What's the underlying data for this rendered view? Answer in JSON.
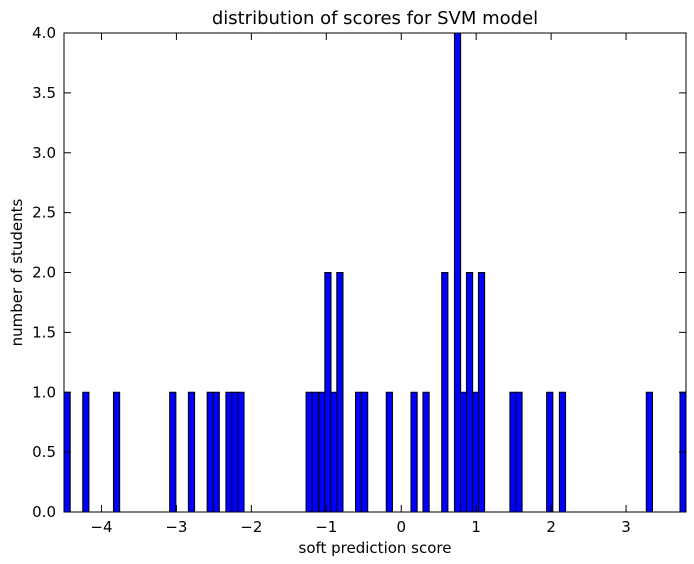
{
  "chart_data": {
    "type": "bar",
    "title": "distribution of scores for SVM model",
    "xlabel": "soft prediction score",
    "ylabel": "number of students",
    "xlim": [
      -4.5,
      3.8
    ],
    "ylim": [
      0,
      4.0
    ],
    "bar_width": 0.083,
    "bar_color": "#0000ff",
    "grid": false,
    "x_ticks": [
      {
        "value": -4,
        "label": "−4"
      },
      {
        "value": -3,
        "label": "−3"
      },
      {
        "value": -2,
        "label": "−2"
      },
      {
        "value": -1,
        "label": "−1"
      },
      {
        "value": 0,
        "label": "0"
      },
      {
        "value": 1,
        "label": "1"
      },
      {
        "value": 2,
        "label": "2"
      },
      {
        "value": 3,
        "label": "3"
      }
    ],
    "y_ticks": [
      {
        "value": 0.0,
        "label": "0.0"
      },
      {
        "value": 0.5,
        "label": "0.5"
      },
      {
        "value": 1.0,
        "label": "1.0"
      },
      {
        "value": 1.5,
        "label": "1.5"
      },
      {
        "value": 2.0,
        "label": "2.0"
      },
      {
        "value": 2.5,
        "label": "2.5"
      },
      {
        "value": 3.0,
        "label": "3.0"
      },
      {
        "value": 3.5,
        "label": "3.5"
      },
      {
        "value": 4.0,
        "label": "4.0"
      }
    ],
    "bins": [
      {
        "x": -4.5,
        "count": 1
      },
      {
        "x": -4.25,
        "count": 1
      },
      {
        "x": -3.84,
        "count": 1
      },
      {
        "x": -3.09,
        "count": 1
      },
      {
        "x": -2.84,
        "count": 1
      },
      {
        "x": -2.59,
        "count": 1
      },
      {
        "x": -2.51,
        "count": 1
      },
      {
        "x": -2.34,
        "count": 1
      },
      {
        "x": -2.26,
        "count": 1
      },
      {
        "x": -2.18,
        "count": 1
      },
      {
        "x": -1.27,
        "count": 1
      },
      {
        "x": -1.19,
        "count": 1
      },
      {
        "x": -1.1,
        "count": 1
      },
      {
        "x": -1.02,
        "count": 2
      },
      {
        "x": -0.94,
        "count": 1
      },
      {
        "x": -0.86,
        "count": 2
      },
      {
        "x": -0.61,
        "count": 1
      },
      {
        "x": -0.53,
        "count": 1
      },
      {
        "x": -0.2,
        "count": 1
      },
      {
        "x": 0.13,
        "count": 1
      },
      {
        "x": 0.29,
        "count": 1
      },
      {
        "x": 0.54,
        "count": 2
      },
      {
        "x": 0.71,
        "count": 4
      },
      {
        "x": 0.79,
        "count": 1
      },
      {
        "x": 0.87,
        "count": 2
      },
      {
        "x": 0.95,
        "count": 1
      },
      {
        "x": 1.03,
        "count": 2
      },
      {
        "x": 1.45,
        "count": 1
      },
      {
        "x": 1.53,
        "count": 1
      },
      {
        "x": 1.94,
        "count": 1
      },
      {
        "x": 2.11,
        "count": 1
      },
      {
        "x": 3.27,
        "count": 1
      },
      {
        "x": 3.72,
        "count": 1
      }
    ]
  }
}
